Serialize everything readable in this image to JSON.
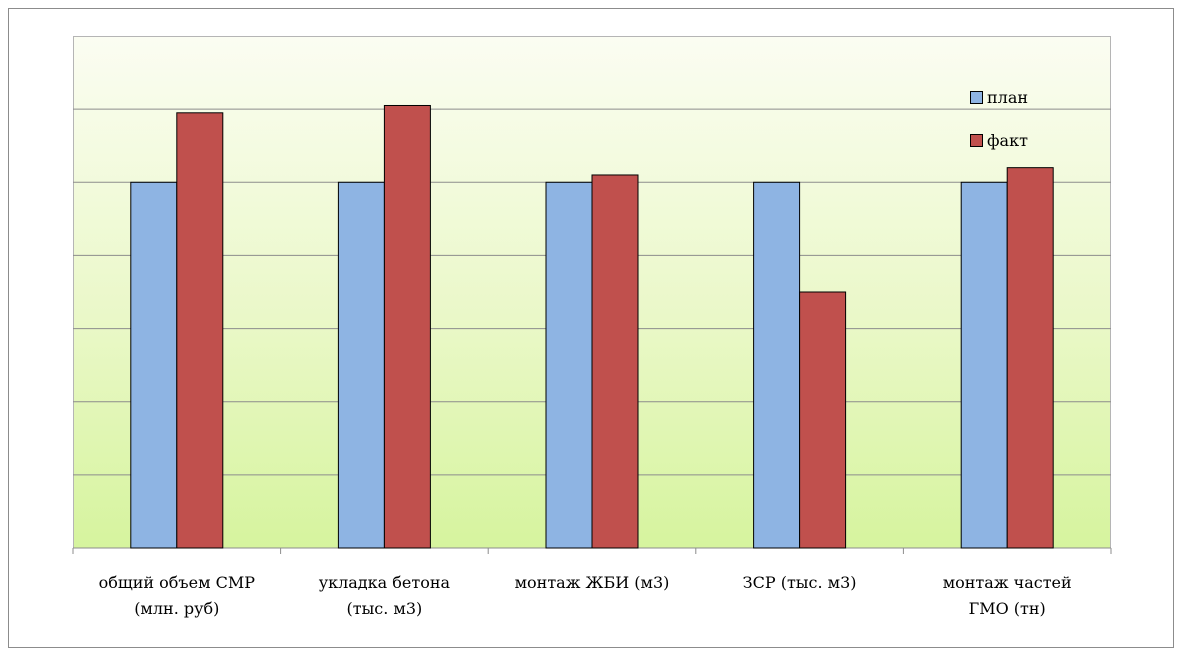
{
  "chart_data": {
    "type": "bar",
    "categories": [
      [
        "общий объем СМР",
        "(млн. руб)"
      ],
      [
        "укладка бетона",
        "(тыс. м3)"
      ],
      [
        "монтаж ЖБИ (м3)"
      ],
      [
        "ЗСР (тыс. м3)"
      ],
      [
        "монтаж частей",
        "ГМО (тн)"
      ]
    ],
    "series": [
      {
        "name": "план",
        "color": "#8eb4e3",
        "values": [
          100,
          100,
          100,
          100,
          100
        ]
      },
      {
        "name": "факт",
        "color": "#c0504d",
        "values": [
          119,
          121,
          102,
          70,
          104
        ]
      }
    ],
    "ylim": [
      0,
      140
    ],
    "grid": true,
    "legend_position": "top-right"
  }
}
